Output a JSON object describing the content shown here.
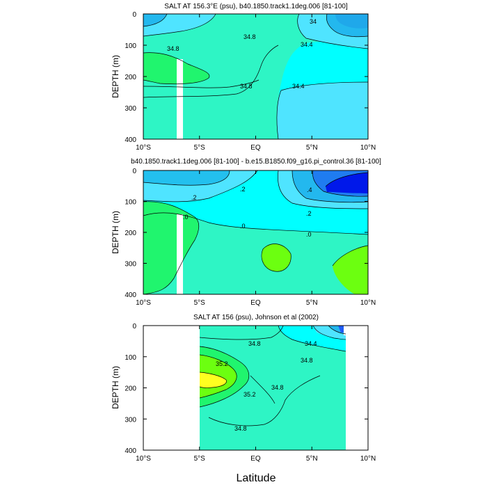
{
  "xlabel": "Latitude",
  "colors": {
    "level_lt_34_0": "#1f5cf5",
    "level_34_0_34_4": "#23b8ee",
    "level_34_4_34_6": "#4fe4ff",
    "level_34_6_34_8": "#00ffff",
    "level_34_8_35_0": "#2ef5c5",
    "level_35_0_35_2": "#20f56e",
    "level_35_2_35_4": "#6cff10",
    "level_gt_35_4": "#ffff20",
    "diff_lt_m0_2": "#25f06b",
    "diff_m0_2_0": "#2ef5c5",
    "diff_0_0_2": "#00ffff",
    "diff_0_2_0_4": "#4fe4ff",
    "diff_0_4_0_6": "#23b8ee",
    "diff_gt_0_6": "#1f5cf5"
  },
  "chart_data": [
    {
      "type": "contour",
      "title": "SALT AT 156.3°E (psu), b40.1850.track1.1deg.006 [81-100]",
      "ylabel": "DEPTH (m)",
      "x_ticks": [
        "10°S",
        "5°S",
        "EQ",
        "5°N",
        "10°N"
      ],
      "y_ticks": [
        "0",
        "100",
        "200",
        "300",
        "400"
      ],
      "xlim": [
        -10,
        10
      ],
      "ylim": [
        400,
        0
      ],
      "contour_labels": [
        "34.8",
        "34.8",
        "34.8",
        "34.4",
        "34.4",
        "34"
      ]
    },
    {
      "type": "contour",
      "title": "b40.1850.track1.1deg.006 [81-100] - b.e15.B1850.f09_g16.pi_control.36 [81-100]",
      "ylabel": "DEPTH (m)",
      "x_ticks": [
        "10°S",
        "5°S",
        "EQ",
        "5°N",
        "10°N"
      ],
      "y_ticks": [
        "0",
        "100",
        "200",
        "300",
        "400"
      ],
      "xlim": [
        -10,
        10
      ],
      "ylim": [
        400,
        0
      ],
      "contour_labels": [
        ".2",
        ".2",
        ".0",
        ".0",
        ".0",
        ".4",
        ".2"
      ]
    },
    {
      "type": "contour",
      "title": "SALT AT 156 (psu), Johnson et al (2002)",
      "ylabel": "DEPTH (m)",
      "x_ticks": [
        "10°S",
        "5°S",
        "EQ",
        "5°N",
        "10°N"
      ],
      "y_ticks": [
        "0",
        "100",
        "200",
        "300",
        "400"
      ],
      "xlim": [
        -10,
        10
      ],
      "ylim": [
        400,
        0
      ],
      "data_extent_lat": [
        -5,
        8
      ],
      "contour_labels": [
        "34.8",
        "34.4",
        "35.2",
        "34.8",
        "35.2",
        "34.8",
        "34.8"
      ]
    }
  ]
}
